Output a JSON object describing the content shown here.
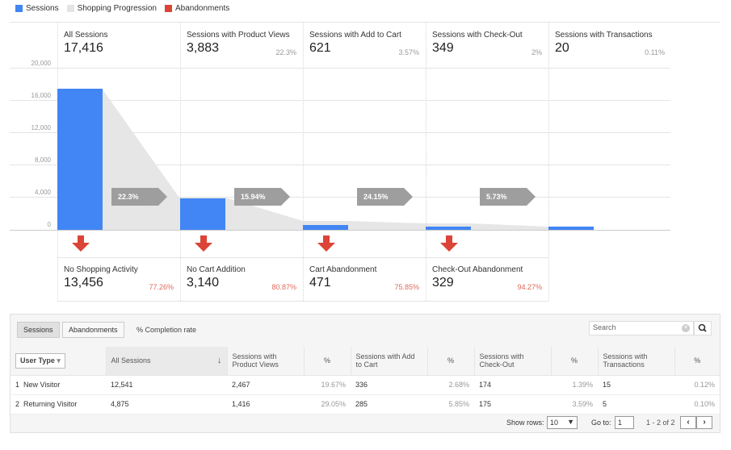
{
  "legend": [
    {
      "label": "Sessions",
      "color": "#4285f4"
    },
    {
      "label": "Shopping Progression",
      "color": "#e4e4e4"
    },
    {
      "label": "Abandonments",
      "color": "#db4437"
    }
  ],
  "chart_data": {
    "type": "bar",
    "categories": [
      "All Sessions",
      "Sessions with Product Views",
      "Sessions with Add to Cart",
      "Sessions with Check-Out",
      "Sessions with Transactions"
    ],
    "values": [
      17416,
      3883,
      621,
      349,
      20
    ],
    "ylim": [
      0,
      20000
    ],
    "yticks": [
      "20,000",
      "16,000",
      "12,000",
      "8,000",
      "4,000",
      "0"
    ],
    "progression_pct": [
      "22.3%",
      "15.94%",
      "24.15%",
      "5.73%"
    ]
  },
  "stages": [
    {
      "label": "All Sessions",
      "value": "17,416",
      "pct": ""
    },
    {
      "label": "Sessions with Product Views",
      "value": "3,883",
      "pct": "22.3%"
    },
    {
      "label": "Sessions with Add to Cart",
      "value": "621",
      "pct": "3.57%"
    },
    {
      "label": "Sessions with Check-Out",
      "value": "349",
      "pct": "2%"
    },
    {
      "label": "Sessions with Transactions",
      "value": "20",
      "pct": "0.11%"
    }
  ],
  "abandonments": [
    {
      "label": "No Shopping Activity",
      "value": "13,456",
      "pct": "77.26%"
    },
    {
      "label": "No Cart Addition",
      "value": "3,140",
      "pct": "80.87%"
    },
    {
      "label": "Cart Abandonment",
      "value": "471",
      "pct": "75.85%"
    },
    {
      "label": "Check-Out Abandonment",
      "value": "329",
      "pct": "94.27%"
    }
  ],
  "table": {
    "tab_sessions": "Sessions",
    "tab_abandonments": "Abandonments",
    "completion_label": "% Completion rate",
    "search_placeholder": "Search",
    "dimension_button": "User Type",
    "columns": [
      "All Sessions",
      "Sessions with Product Views",
      "%",
      "Sessions with Add to Cart",
      "%",
      "Sessions with Check-Out",
      "%",
      "Sessions with Transactions",
      "%"
    ],
    "rows": [
      {
        "num": "1",
        "name": "New Visitor",
        "cells": [
          "12,541",
          "2,467",
          "19.67%",
          "336",
          "2.68%",
          "174",
          "1.39%",
          "15",
          "0.12%"
        ]
      },
      {
        "num": "2",
        "name": "Returning Visitor",
        "cells": [
          "4,875",
          "1,416",
          "29.05%",
          "285",
          "5.85%",
          "175",
          "3.59%",
          "5",
          "0.10%"
        ]
      }
    ],
    "show_rows_label": "Show rows:",
    "show_rows_value": "10",
    "goto_label": "Go to:",
    "goto_value": "1",
    "range_label": "1 - 2 of 2"
  }
}
